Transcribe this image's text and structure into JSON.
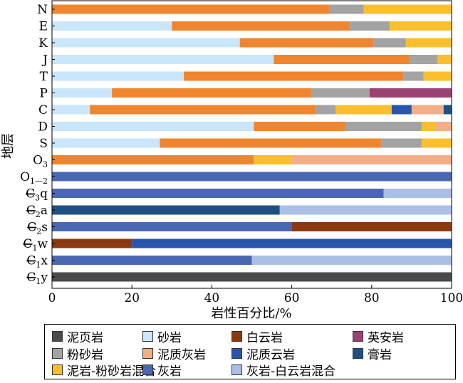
{
  "chart_data": {
    "type": "bar",
    "orientation": "horizontal",
    "stacked": true,
    "xlabel": "岩性百分比/%",
    "ylabel": "地层",
    "xlim": [
      0,
      100
    ],
    "xticks": [
      "0",
      "20",
      "40",
      "60",
      "80",
      "100"
    ],
    "grid": false,
    "legend_position": "bottom",
    "lithologies": [
      {
        "key": "mudstone",
        "name": "泥页岩",
        "color": "#4a4a4a"
      },
      {
        "key": "sandstone",
        "name": "砂岩",
        "color": "#c9e6fb"
      },
      {
        "key": "dolomite",
        "name": "白云岩",
        "color": "#8b3a0f"
      },
      {
        "key": "dacite",
        "name": "英安岩",
        "color": "#9c4173"
      },
      {
        "key": "siltstone",
        "name": "粉砂岩",
        "color": "#a3a3a3"
      },
      {
        "key": "muddy_limestone",
        "name": "泥质灰岩",
        "color": "#f3ae88"
      },
      {
        "key": "muddy_dolomite",
        "name": "泥质云岩",
        "color": "#2a55ac"
      },
      {
        "key": "gypsum",
        "name": "膏岩",
        "color": "#1f5084"
      },
      {
        "key": "mud_silt_mix",
        "name": "泥岩-粉砂岩混合",
        "color": "#fbbf2e"
      },
      {
        "key": "limestone",
        "name": "灰岩",
        "color": "#4a67b2"
      },
      {
        "key": "ls_dolo_mix",
        "name": "灰岩-白云岩混合",
        "color": "#a9bfe6"
      }
    ],
    "orange_color": "#f0852f",
    "layers": [
      {
        "main": "N",
        "sub": "",
        "suffix": "",
        "cambrian": false,
        "segments": [
          [
            "orange",
            69.5
          ],
          [
            "siltstone",
            8.5
          ],
          [
            "mud_silt_mix",
            22
          ]
        ]
      },
      {
        "main": "E",
        "sub": "",
        "suffix": "",
        "cambrian": false,
        "segments": [
          [
            "sandstone",
            30
          ],
          [
            "orange",
            44.5
          ],
          [
            "siltstone",
            10
          ],
          [
            "mud_silt_mix",
            15.5
          ]
        ]
      },
      {
        "main": "K",
        "sub": "",
        "suffix": "",
        "cambrian": false,
        "segments": [
          [
            "sandstone",
            47
          ],
          [
            "orange",
            33.5
          ],
          [
            "siltstone",
            8
          ],
          [
            "mud_silt_mix",
            11.5
          ]
        ]
      },
      {
        "main": "J",
        "sub": "",
        "suffix": "",
        "cambrian": false,
        "segments": [
          [
            "sandstone",
            55.5
          ],
          [
            "orange",
            34
          ],
          [
            "siltstone",
            7
          ],
          [
            "mud_silt_mix",
            3.5
          ]
        ]
      },
      {
        "main": "T",
        "sub": "",
        "suffix": "",
        "cambrian": false,
        "segments": [
          [
            "sandstone",
            33
          ],
          [
            "orange",
            55
          ],
          [
            "siltstone",
            5
          ],
          [
            "mud_silt_mix",
            7
          ]
        ]
      },
      {
        "main": "P",
        "sub": "",
        "suffix": "",
        "cambrian": false,
        "segments": [
          [
            "sandstone",
            15
          ],
          [
            "orange",
            50
          ],
          [
            "siltstone",
            14.5
          ],
          [
            "dacite",
            20.5
          ]
        ]
      },
      {
        "main": "C",
        "sub": "",
        "suffix": "",
        "cambrian": false,
        "segments": [
          [
            "sandstone",
            9.5
          ],
          [
            "orange",
            56.5
          ],
          [
            "siltstone",
            5
          ],
          [
            "mud_silt_mix",
            14
          ],
          [
            "muddy_dolomite",
            5
          ],
          [
            "muddy_limestone",
            8
          ],
          [
            "gypsum",
            2
          ]
        ]
      },
      {
        "main": "D",
        "sub": "",
        "suffix": "",
        "cambrian": false,
        "segments": [
          [
            "sandstone",
            50.5
          ],
          [
            "orange",
            23
          ],
          [
            "siltstone",
            19
          ],
          [
            "mud_silt_mix",
            3.5
          ],
          [
            "muddy_limestone",
            4
          ]
        ]
      },
      {
        "main": "S",
        "sub": "",
        "suffix": "",
        "cambrian": false,
        "segments": [
          [
            "sandstone",
            27
          ],
          [
            "orange",
            55.5
          ],
          [
            "siltstone",
            10
          ],
          [
            "mud_silt_mix",
            7.5
          ]
        ]
      },
      {
        "main": "O",
        "sub": "3",
        "suffix": "",
        "cambrian": false,
        "segments": [
          [
            "orange",
            50.5
          ],
          [
            "mud_silt_mix",
            9.5
          ],
          [
            "muddy_limestone",
            40
          ]
        ]
      },
      {
        "main": "O",
        "sub": "1—2",
        "suffix": "",
        "cambrian": false,
        "segments": [
          [
            "limestone",
            100
          ]
        ]
      },
      {
        "main": "C",
        "sub": "3",
        "suffix": "q",
        "cambrian": true,
        "segments": [
          [
            "limestone",
            83
          ],
          [
            "ls_dolo_mix",
            17
          ]
        ]
      },
      {
        "main": "C",
        "sub": "2",
        "suffix": "a",
        "cambrian": true,
        "segments": [
          [
            "gypsum",
            57
          ],
          [
            "ls_dolo_mix",
            43
          ]
        ]
      },
      {
        "main": "C",
        "sub": "2",
        "suffix": "s",
        "cambrian": true,
        "segments": [
          [
            "limestone",
            60
          ],
          [
            "dolomite",
            40
          ]
        ]
      },
      {
        "main": "C",
        "sub": "1",
        "suffix": "w",
        "cambrian": true,
        "segments": [
          [
            "dolomite",
            20
          ],
          [
            "muddy_dolomite",
            80
          ]
        ]
      },
      {
        "main": "C",
        "sub": "1",
        "suffix": "x",
        "cambrian": true,
        "segments": [
          [
            "limestone",
            50
          ],
          [
            "ls_dolo_mix",
            50
          ]
        ]
      },
      {
        "main": "C",
        "sub": "1",
        "suffix": "y",
        "cambrian": true,
        "segments": [
          [
            "mudstone",
            100
          ]
        ]
      }
    ]
  },
  "legend": {
    "items": [
      {
        "label": "泥页岩",
        "color": "#4a4a4a"
      },
      {
        "label": "砂岩",
        "color": "#c9e6fb"
      },
      {
        "label": "白云岩",
        "color": "#8b3a0f"
      },
      {
        "label": "英安岩",
        "color": "#9c4173"
      },
      {
        "label": "粉砂岩",
        "color": "#a3a3a3"
      },
      {
        "label": "泥质灰岩",
        "color": "#f3ae88"
      },
      {
        "label": "泥质云岩",
        "color": "#2a55ac"
      },
      {
        "label": "膏岩",
        "color": "#1f5084"
      },
      {
        "label": "泥岩-粉砂岩混合",
        "color": "#fbbf2e"
      },
      {
        "label": "灰岩",
        "color": "#4a67b2"
      },
      {
        "label": "灰岩-白云岩混合",
        "color": "#a9bfe6"
      }
    ]
  }
}
